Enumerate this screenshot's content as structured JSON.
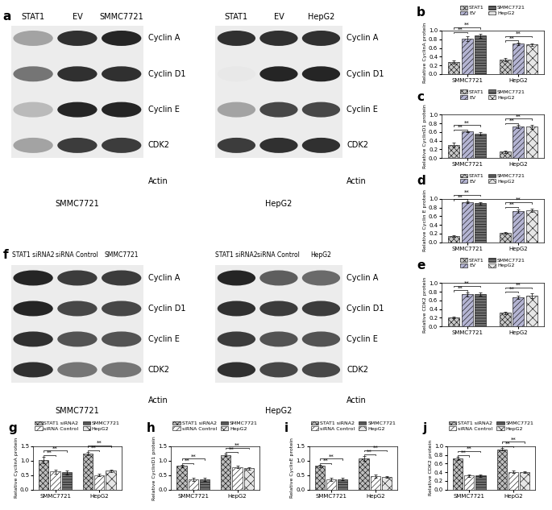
{
  "blots": [
    {
      "panel": "a",
      "blots": [
        {
          "cell_line": "SMMC7721",
          "lanes": [
            "STAT1",
            "EV",
            "SMMC7721"
          ],
          "rows": [
            "Cyclin A",
            "Cyclin D1",
            "Cyclin E",
            "CDK2",
            "Actin"
          ],
          "band_intensity": [
            [
              0.4,
              0.9,
              0.95
            ],
            [
              0.6,
              0.9,
              0.9
            ],
            [
              0.3,
              0.95,
              0.95
            ],
            [
              0.4,
              0.85,
              0.85
            ],
            null
          ]
        },
        {
          "cell_line": "HepG2",
          "lanes": [
            "STAT1",
            "EV",
            "HepG2"
          ],
          "rows": [
            "Cyclin A",
            "Cyclin D1",
            "Cyclin E",
            "CDK2",
            "Actin"
          ],
          "band_intensity": [
            [
              0.9,
              0.9,
              0.9
            ],
            [
              0.1,
              0.95,
              0.95
            ],
            [
              0.4,
              0.8,
              0.8
            ],
            [
              0.85,
              0.9,
              0.9
            ],
            null
          ]
        }
      ]
    },
    {
      "panel": "f",
      "blots": [
        {
          "cell_line": "SMMC7721",
          "lanes": [
            "STAT1 siRNA2",
            "siRNA Control",
            "SMMC7721"
          ],
          "rows": [
            "Cyclin A",
            "Cyclin D1",
            "Cyclin E",
            "CDK2",
            "Actin"
          ],
          "band_intensity": [
            [
              0.95,
              0.85,
              0.85
            ],
            [
              0.95,
              0.8,
              0.8
            ],
            [
              0.9,
              0.75,
              0.75
            ],
            [
              0.9,
              0.6,
              0.6
            ],
            null
          ]
        },
        {
          "cell_line": "HepG2",
          "lanes": [
            "STAT1 siRNA2",
            "siRNA Control",
            "HepG2"
          ],
          "rows": [
            "Cyclin A",
            "Cyclin D1",
            "Cyclin E",
            "CDK2",
            "Actin"
          ],
          "band_intensity": [
            [
              0.95,
              0.7,
              0.65
            ],
            [
              0.9,
              0.85,
              0.85
            ],
            [
              0.85,
              0.75,
              0.75
            ],
            [
              0.9,
              0.8,
              0.8
            ],
            null
          ]
        }
      ]
    }
  ],
  "chart_data": [
    {
      "panel": "b",
      "type": "bar",
      "ylabel": "Relative CyclinA protein",
      "categories": [
        "SMMC7721",
        "HepG2"
      ],
      "series": [
        {
          "name": "STAT1",
          "color": "#c8c8c8",
          "values": [
            0.28,
            0.33
          ],
          "errors": [
            0.04,
            0.03
          ]
        },
        {
          "name": "EV",
          "color": "#b4b4d2",
          "values": [
            0.81,
            0.7
          ],
          "errors": [
            0.06,
            0.03
          ]
        },
        {
          "name": "SMMC7721",
          "color": "#6e6e6e",
          "values": [
            0.88,
            null
          ],
          "errors": [
            0.05,
            null
          ]
        },
        {
          "name": "HepG2",
          "color": "#e6e6e6",
          "values": [
            null,
            0.68
          ],
          "errors": [
            null,
            0.03
          ]
        }
      ],
      "ylim": [
        0,
        1.0
      ],
      "yticks": [
        {
          "value": 0.0,
          "label": "0.0"
        },
        0.2,
        0.4,
        0.6,
        0.8,
        {
          "value": 1.0,
          "label": "1.0"
        }
      ],
      "legend": "top",
      "significance": [
        {
          "category": "SMMC7721",
          "between": [
            "STAT1",
            "EV"
          ],
          "text": "**"
        },
        {
          "category": "SMMC7721",
          "between": [
            "STAT1",
            "SMMC7721"
          ],
          "text": "**"
        },
        {
          "category": "HepG2",
          "between": [
            "STAT1",
            "EV"
          ],
          "text": "**"
        },
        {
          "category": "HepG2",
          "between": [
            "STAT1",
            "HepG2"
          ],
          "text": "**"
        }
      ]
    },
    {
      "panel": "c",
      "type": "bar",
      "ylabel": "Relative CyclinD1 protein",
      "categories": [
        "SMMC7721",
        "HepG2"
      ],
      "series": [
        {
          "name": "STAT1",
          "color": "#c8c8c8",
          "values": [
            0.31,
            0.15
          ],
          "errors": [
            0.05,
            0.03
          ]
        },
        {
          "name": "EV",
          "color": "#b4b4d2",
          "values": [
            0.61,
            0.73
          ],
          "errors": [
            0.01,
            0.04
          ]
        },
        {
          "name": "SMMC7721",
          "color": "#6e6e6e",
          "values": [
            0.56,
            null
          ],
          "errors": [
            0.03,
            null
          ]
        },
        {
          "name": "HepG2",
          "color": "#e6e6e6",
          "values": [
            null,
            0.72
          ],
          "errors": [
            null,
            0.05
          ]
        }
      ],
      "ylim": [
        0,
        1.0
      ],
      "yticks": [
        {
          "value": 0.0,
          "label": "0.0"
        },
        0.2,
        0.4,
        0.6,
        0.8,
        {
          "value": 1.0,
          "label": "1.0"
        }
      ],
      "legend": "top",
      "significance": [
        {
          "category": "SMMC7721",
          "between": [
            "STAT1",
            "EV"
          ],
          "text": "**"
        },
        {
          "category": "SMMC7721",
          "between": [
            "STAT1",
            "SMMC7721"
          ],
          "text": "**"
        },
        {
          "category": "HepG2",
          "between": [
            "STAT1",
            "EV"
          ],
          "text": "**"
        },
        {
          "category": "HepG2",
          "between": [
            "STAT1",
            "HepG2"
          ],
          "text": "**"
        }
      ]
    },
    {
      "panel": "d",
      "type": "bar",
      "ylabel": "Relative Cyclin E protein",
      "categories": [
        "SMMC7721",
        "HepG2"
      ],
      "series": [
        {
          "name": "STAT1",
          "color": "#c8c8c8",
          "values": [
            0.15,
            0.22
          ],
          "errors": [
            0.02,
            0.02
          ]
        },
        {
          "name": "EV",
          "color": "#b4b4d2",
          "values": [
            0.93,
            0.72
          ],
          "errors": [
            0.02,
            0.03
          ]
        },
        {
          "name": "SMMC7721",
          "color": "#6e6e6e",
          "values": [
            0.9,
            null
          ],
          "errors": [
            0.03,
            null
          ]
        },
        {
          "name": "HepG2",
          "color": "#e6e6e6",
          "values": [
            null,
            0.74
          ],
          "errors": [
            null,
            0.04
          ]
        }
      ],
      "ylim": [
        0,
        1.0
      ],
      "yticks": [
        {
          "value": 0.0,
          "label": "0.0"
        },
        0.2,
        0.4,
        0.6,
        0.8,
        {
          "value": 1.0,
          "label": "1.0"
        }
      ],
      "legend": "top",
      "significance": [
        {
          "category": "SMMC7721",
          "between": [
            "STAT1",
            "EV"
          ],
          "text": "**"
        },
        {
          "category": "SMMC7721",
          "between": [
            "STAT1",
            "SMMC7721"
          ],
          "text": "**"
        },
        {
          "category": "HepG2",
          "between": [
            "STAT1",
            "EV"
          ],
          "text": "**"
        },
        {
          "category": "HepG2",
          "between": [
            "STAT1",
            "HepG2"
          ],
          "text": "**"
        }
      ]
    },
    {
      "panel": "e",
      "type": "bar",
      "ylabel": "Relative CDK2 protein",
      "categories": [
        "SMMC7721",
        "HepG2"
      ],
      "series": [
        {
          "name": "STAT1",
          "color": "#c8c8c8",
          "values": [
            0.21,
            0.31
          ],
          "errors": [
            0.02,
            0.02
          ]
        },
        {
          "name": "EV",
          "color": "#b4b4d2",
          "values": [
            0.74,
            0.67
          ],
          "errors": [
            0.05,
            0.04
          ]
        },
        {
          "name": "SMMC7721",
          "color": "#6e6e6e",
          "values": [
            0.74,
            null
          ],
          "errors": [
            0.04,
            null
          ]
        },
        {
          "name": "HepG2",
          "color": "#e6e6e6",
          "values": [
            null,
            0.71
          ],
          "errors": [
            null,
            0.05
          ]
        }
      ],
      "ylim": [
        0,
        1.0
      ],
      "yticks": [
        {
          "value": 0.0,
          "label": "0.0"
        },
        0.2,
        0.4,
        0.6,
        0.8,
        {
          "value": 1.0,
          "label": "1.0"
        }
      ],
      "legend": "top",
      "significance": [
        {
          "category": "SMMC7721",
          "between": [
            "STAT1",
            "EV"
          ],
          "text": "**"
        },
        {
          "category": "SMMC7721",
          "between": [
            "STAT1",
            "SMMC7721"
          ],
          "text": "**"
        },
        {
          "category": "HepG2",
          "between": [
            "STAT1",
            "EV"
          ],
          "text": "**"
        },
        {
          "category": "HepG2",
          "between": [
            "STAT1",
            "HepG2"
          ],
          "text": "**"
        }
      ]
    },
    {
      "panel": "g",
      "type": "bar",
      "ylabel": "Relative CyclinA protein",
      "categories": [
        "SMMC7721",
        "HepG2"
      ],
      "series": [
        {
          "name": "STAT1 siRNA2",
          "color": "#bdbdbd",
          "values": [
            1.02,
            1.25
          ],
          "errors": [
            0.12,
            0.06
          ]
        },
        {
          "name": "siRNA Control",
          "color": "#ffffff",
          "values": [
            0.62,
            0.5
          ],
          "errors": [
            0.06,
            0.04
          ]
        },
        {
          "name": "SMMC7721",
          "color": "#6e6e6e",
          "values": [
            0.6,
            null
          ],
          "errors": [
            0.07,
            null
          ]
        },
        {
          "name": "HepG2",
          "color": "#e6e6e6",
          "values": [
            null,
            0.65
          ],
          "errors": [
            null,
            0.05
          ]
        }
      ],
      "ylim": [
        0,
        1.5
      ],
      "yticks": [
        {
          "value": 0.0,
          "label": "0.0"
        },
        0.5,
        {
          "value": 1.0,
          "label": "1.0"
        },
        1.5
      ],
      "legend": "top",
      "significance": [
        {
          "category": "SMMC7721",
          "between": [
            "STAT1 siRNA2",
            "siRNA Control"
          ],
          "text": "**"
        },
        {
          "category": "SMMC7721",
          "between": [
            "STAT1 siRNA2",
            "SMMC7721"
          ],
          "text": "**"
        },
        {
          "category": "HepG2",
          "between": [
            "STAT1 siRNA2",
            "siRNA Control"
          ],
          "text": "**"
        },
        {
          "category": "HepG2",
          "between": [
            "STAT1 siRNA2",
            "HepG2"
          ],
          "text": "**"
        }
      ]
    },
    {
      "panel": "h",
      "type": "bar",
      "ylabel": "Relative CyclinD1 protein",
      "categories": [
        "SMMC7721",
        "HepG2"
      ],
      "series": [
        {
          "name": "STAT1 siRNA2",
          "color": "#bdbdbd",
          "values": [
            0.82,
            1.2
          ],
          "errors": [
            0.04,
            0.04
          ]
        },
        {
          "name": "siRNA Control",
          "color": "#ffffff",
          "values": [
            0.36,
            0.78
          ],
          "errors": [
            0.06,
            0.05
          ]
        },
        {
          "name": "SMMC7721",
          "color": "#6e6e6e",
          "values": [
            0.36,
            null
          ],
          "errors": [
            0.06,
            null
          ]
        },
        {
          "name": "HepG2",
          "color": "#e6e6e6",
          "values": [
            null,
            0.73
          ],
          "errors": [
            null,
            0.03
          ]
        }
      ],
      "ylim": [
        0,
        1.5
      ],
      "yticks": [
        {
          "value": 0.0,
          "label": "0.0"
        },
        0.5,
        {
          "value": 1.0,
          "label": "1.0"
        },
        1.5
      ],
      "legend": "top",
      "significance": [
        {
          "category": "SMMC7721",
          "between": [
            "STAT1 siRNA2",
            "siRNA Control"
          ],
          "text": "**"
        },
        {
          "category": "SMMC7721",
          "between": [
            "STAT1 siRNA2",
            "SMMC7721"
          ],
          "text": "**"
        },
        {
          "category": "HepG2",
          "between": [
            "STAT1 siRNA2",
            "siRNA Control"
          ],
          "text": "**"
        },
        {
          "category": "HepG2",
          "between": [
            "STAT1 siRNA2",
            "HepG2"
          ],
          "text": "**"
        }
      ]
    },
    {
      "panel": "i",
      "type": "bar",
      "ylabel": "Relative CyclinE protein",
      "categories": [
        "SMMC7721",
        "HepG2"
      ],
      "series": [
        {
          "name": "STAT1 siRNA2",
          "color": "#bdbdbd",
          "values": [
            0.82,
            1.08
          ],
          "errors": [
            0.04,
            0.08
          ]
        },
        {
          "name": "siRNA Control",
          "color": "#ffffff",
          "values": [
            0.36,
            0.46
          ],
          "errors": [
            0.05,
            0.05
          ]
        },
        {
          "name": "SMMC7721",
          "color": "#6e6e6e",
          "values": [
            0.36,
            null
          ],
          "errors": [
            0.04,
            null
          ]
        },
        {
          "name": "HepG2",
          "color": "#e6e6e6",
          "values": [
            null,
            0.43
          ],
          "errors": [
            null,
            0.03
          ]
        }
      ],
      "ylim": [
        0,
        1.5
      ],
      "yticks": [
        {
          "value": 0.0,
          "label": "0.0"
        },
        0.5,
        {
          "value": 1.0,
          "label": "1.0"
        },
        1.5
      ],
      "legend": "top",
      "significance": [
        {
          "category": "SMMC7721",
          "between": [
            "STAT1 siRNA2",
            "siRNA Control"
          ],
          "text": "**"
        },
        {
          "category": "SMMC7721",
          "between": [
            "STAT1 siRNA2",
            "SMMC7721"
          ],
          "text": "**"
        },
        {
          "category": "HepG2",
          "between": [
            "STAT1 siRNA2",
            "siRNA Control"
          ],
          "text": "**"
        },
        {
          "category": "HepG2",
          "between": [
            "STAT1 siRNA2",
            "HepG2"
          ],
          "text": "**"
        }
      ]
    },
    {
      "panel": "j",
      "type": "bar",
      "ylabel": "Relative CDK2 protein",
      "categories": [
        "SMMC7721",
        "HepG2"
      ],
      "series": [
        {
          "name": "STAT1 siRNA2",
          "color": "#bdbdbd",
          "values": [
            0.72,
            0.93
          ],
          "errors": [
            0.03,
            0.03
          ]
        },
        {
          "name": "siRNA Control",
          "color": "#ffffff",
          "values": [
            0.32,
            0.41
          ],
          "errors": [
            0.02,
            0.03
          ]
        },
        {
          "name": "SMMC7721",
          "color": "#6e6e6e",
          "values": [
            0.32,
            null
          ],
          "errors": [
            0.03,
            null
          ]
        },
        {
          "name": "HepG2",
          "color": "#e6e6e6",
          "values": [
            null,
            0.4
          ],
          "errors": [
            null,
            0.02
          ]
        }
      ],
      "ylim": [
        0,
        1.0
      ],
      "yticks": [
        {
          "value": 0.0,
          "label": "0.0"
        },
        0.2,
        0.4,
        0.6,
        0.8,
        {
          "value": 1.0,
          "label": "1.0"
        }
      ],
      "legend": "top",
      "significance": [
        {
          "category": "SMMC7721",
          "between": [
            "STAT1 siRNA2",
            "siRNA Control"
          ],
          "text": "**"
        },
        {
          "category": "SMMC7721",
          "between": [
            "STAT1 siRNA2",
            "SMMC7721"
          ],
          "text": "**"
        },
        {
          "category": "HepG2",
          "between": [
            "STAT1 siRNA2",
            "siRNA Control"
          ],
          "text": "**"
        },
        {
          "category": "HepG2",
          "between": [
            "STAT1 siRNA2",
            "HepG2"
          ],
          "text": "**"
        }
      ]
    }
  ]
}
